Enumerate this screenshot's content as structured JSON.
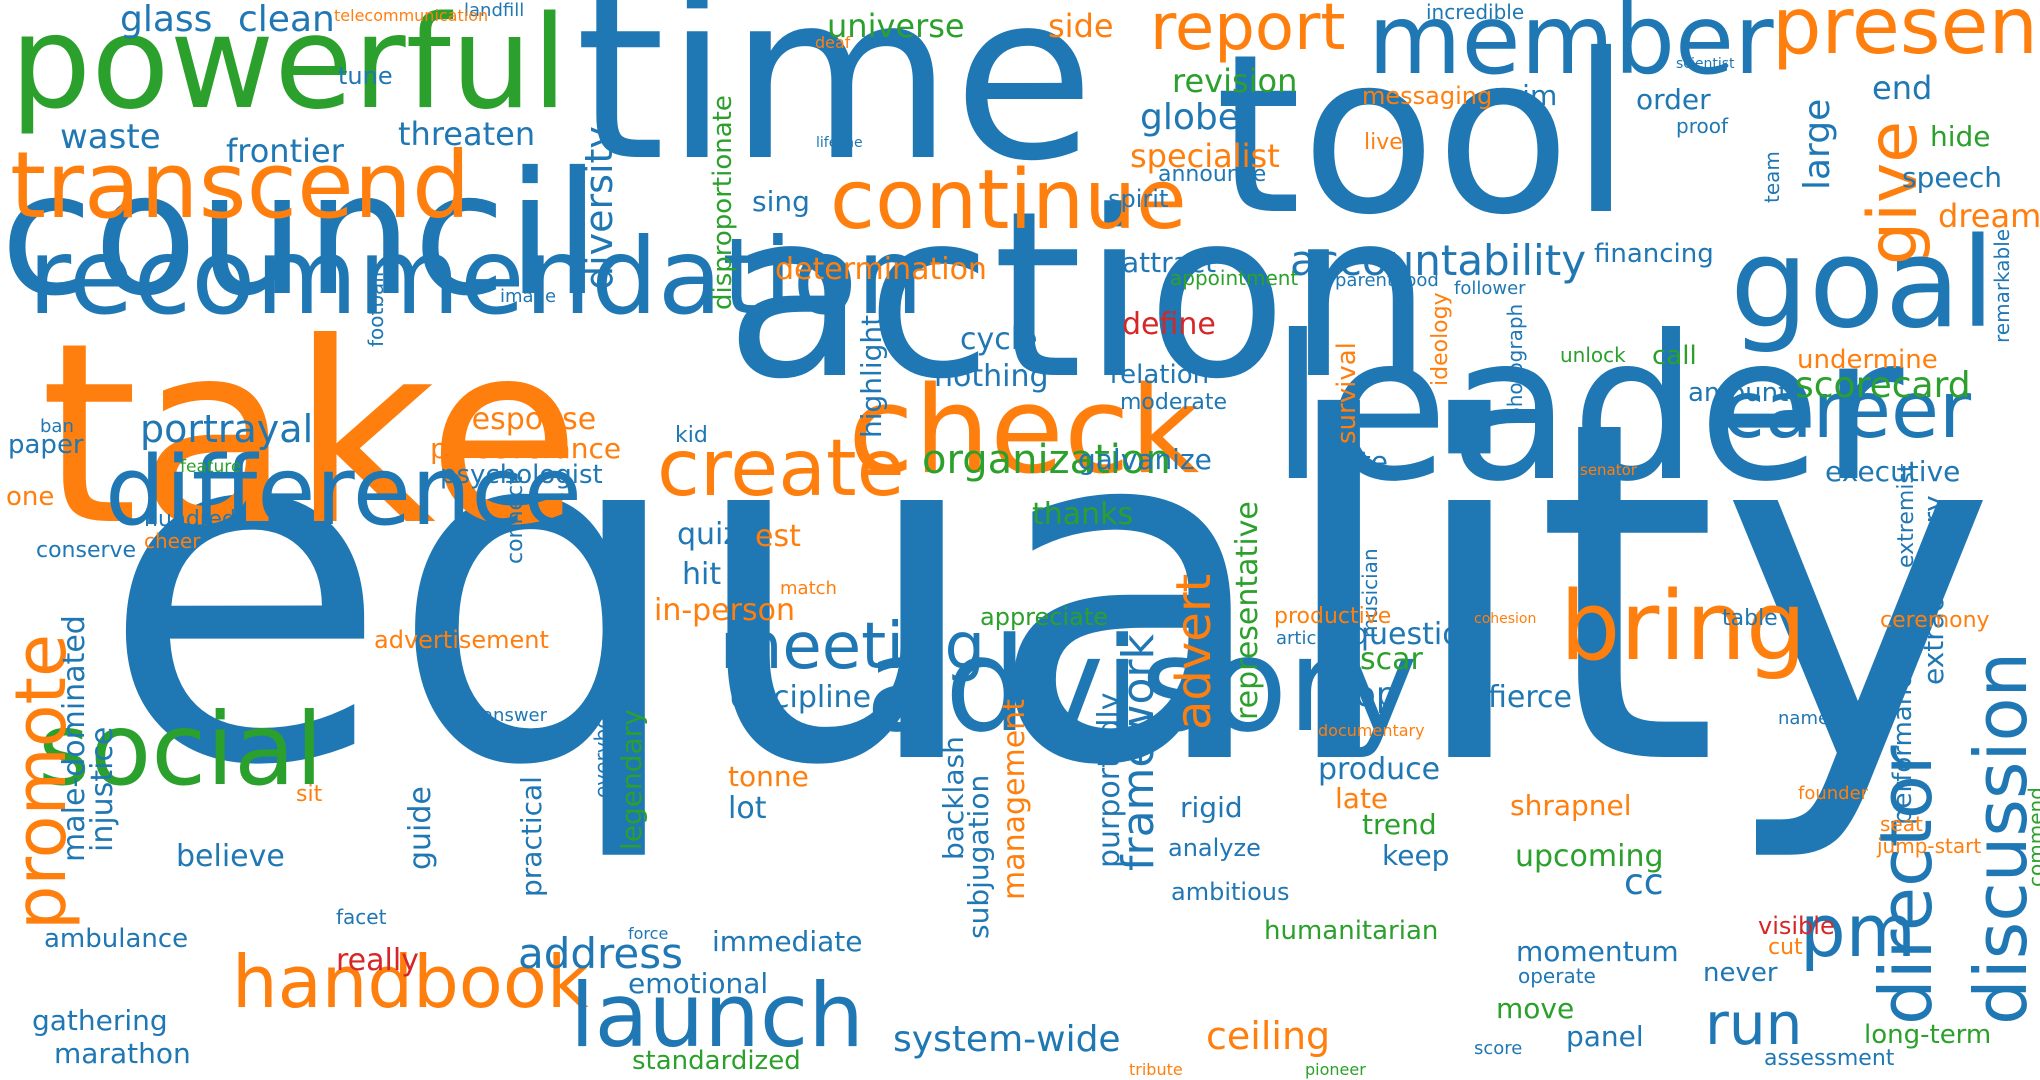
{
  "colors": {
    "blue": "#1f77b4",
    "orange": "#ff7f0e",
    "green": "#2ca02c",
    "red": "#d62728"
  },
  "words": [
    {
      "text": "equality",
      "color": "blue"
    },
    {
      "text": "action",
      "color": "blue"
    },
    {
      "text": "take",
      "color": "orange"
    },
    {
      "text": "time",
      "color": "blue"
    },
    {
      "text": "tool",
      "color": "blue"
    },
    {
      "text": "council",
      "color": "blue"
    },
    {
      "text": "leader",
      "color": "blue"
    },
    {
      "text": "powerful",
      "color": "green"
    },
    {
      "text": "advisory",
      "color": "blue"
    },
    {
      "text": "difference",
      "color": "blue"
    },
    {
      "text": "recommendation",
      "color": "blue"
    },
    {
      "text": "check",
      "color": "orange"
    },
    {
      "text": "member",
      "color": "blue"
    },
    {
      "text": "transcend",
      "color": "orange"
    },
    {
      "text": "continue",
      "color": "orange"
    },
    {
      "text": "goal",
      "color": "blue"
    },
    {
      "text": "social",
      "color": "green"
    },
    {
      "text": "handbook",
      "color": "orange"
    },
    {
      "text": "launch",
      "color": "blue"
    },
    {
      "text": "bring",
      "color": "orange"
    },
    {
      "text": "create",
      "color": "orange"
    },
    {
      "text": "meeting",
      "color": "blue"
    },
    {
      "text": "career",
      "color": "blue"
    },
    {
      "text": "present",
      "color": "orange"
    },
    {
      "text": "report",
      "color": "orange"
    },
    {
      "text": "promote",
      "color": "orange"
    },
    {
      "text": "director",
      "color": "blue"
    },
    {
      "text": "discussion",
      "color": "blue"
    },
    {
      "text": "accountability",
      "color": "blue"
    },
    {
      "text": "organization",
      "color": "green"
    },
    {
      "text": "portrayal",
      "color": "blue"
    },
    {
      "text": "scorecard",
      "color": "green"
    },
    {
      "text": "system-wide",
      "color": "blue"
    },
    {
      "text": "run",
      "color": "blue"
    },
    {
      "text": "pm",
      "color": "blue"
    },
    {
      "text": "give",
      "color": "orange"
    },
    {
      "text": "diversity",
      "color": "blue"
    },
    {
      "text": "framework",
      "color": "blue"
    },
    {
      "text": "address",
      "color": "blue"
    },
    {
      "text": "ceiling",
      "color": "orange"
    },
    {
      "text": "advert",
      "color": "orange"
    },
    {
      "text": "large",
      "color": "blue"
    },
    {
      "text": "glass",
      "color": "blue"
    },
    {
      "text": "clean",
      "color": "blue"
    },
    {
      "text": "waste",
      "color": "blue"
    },
    {
      "text": "frontier",
      "color": "blue"
    },
    {
      "text": "threaten",
      "color": "blue"
    },
    {
      "text": "universe",
      "color": "green"
    },
    {
      "text": "side",
      "color": "orange"
    },
    {
      "text": "globe",
      "color": "blue"
    },
    {
      "text": "specialist",
      "color": "orange"
    },
    {
      "text": "revision",
      "color": "green"
    },
    {
      "text": "messaging",
      "color": "orange"
    },
    {
      "text": "aim",
      "color": "blue"
    },
    {
      "text": "order",
      "color": "blue"
    },
    {
      "text": "end",
      "color": "blue"
    },
    {
      "text": "hide",
      "color": "green"
    },
    {
      "text": "speech",
      "color": "blue"
    },
    {
      "text": "dream",
      "color": "orange"
    },
    {
      "text": "determination",
      "color": "orange"
    },
    {
      "text": "attract",
      "color": "blue"
    },
    {
      "text": "financing",
      "color": "blue"
    },
    {
      "text": "define",
      "color": "red"
    },
    {
      "text": "cycle",
      "color": "blue"
    },
    {
      "text": "nothing",
      "color": "blue"
    },
    {
      "text": "relation",
      "color": "blue"
    },
    {
      "text": "moderate",
      "color": "blue"
    },
    {
      "text": "undermine",
      "color": "orange"
    },
    {
      "text": "amount",
      "color": "blue"
    },
    {
      "text": "call",
      "color": "green"
    },
    {
      "text": "response",
      "color": "orange"
    },
    {
      "text": "perseverance",
      "color": "orange"
    },
    {
      "text": "galvanize",
      "color": "blue"
    },
    {
      "text": "state",
      "color": "blue"
    },
    {
      "text": "executive",
      "color": "blue"
    },
    {
      "text": "thanks",
      "color": "green"
    },
    {
      "text": "est",
      "color": "orange"
    },
    {
      "text": "quiz",
      "color": "blue"
    },
    {
      "text": "hit",
      "color": "blue"
    },
    {
      "text": "in-person",
      "color": "orange"
    },
    {
      "text": "question",
      "color": "blue"
    },
    {
      "text": "scar",
      "color": "green"
    },
    {
      "text": "stop",
      "color": "blue"
    },
    {
      "text": "fierce",
      "color": "blue"
    },
    {
      "text": "discipline",
      "color": "blue"
    },
    {
      "text": "produce",
      "color": "blue"
    },
    {
      "text": "late",
      "color": "orange"
    },
    {
      "text": "trend",
      "color": "green"
    },
    {
      "text": "keep",
      "color": "blue"
    },
    {
      "text": "rigid",
      "color": "blue"
    },
    {
      "text": "analyze",
      "color": "blue"
    },
    {
      "text": "ambitious",
      "color": "blue"
    },
    {
      "text": "shrapnel",
      "color": "orange"
    },
    {
      "text": "upcoming",
      "color": "green"
    },
    {
      "text": "cc",
      "color": "blue"
    },
    {
      "text": "tonne",
      "color": "orange"
    },
    {
      "text": "lot",
      "color": "blue"
    },
    {
      "text": "believe",
      "color": "blue"
    },
    {
      "text": "ambulance",
      "color": "blue"
    },
    {
      "text": "really",
      "color": "red"
    },
    {
      "text": "immediate",
      "color": "blue"
    },
    {
      "text": "emotional",
      "color": "blue"
    },
    {
      "text": "humanitarian",
      "color": "green"
    },
    {
      "text": "momentum",
      "color": "blue"
    },
    {
      "text": "never",
      "color": "blue"
    },
    {
      "text": "visible",
      "color": "red"
    },
    {
      "text": "move",
      "color": "green"
    },
    {
      "text": "panel",
      "color": "blue"
    },
    {
      "text": "gathering",
      "color": "blue"
    },
    {
      "text": "marathon",
      "color": "blue"
    },
    {
      "text": "standardized",
      "color": "green"
    },
    {
      "text": "assessment",
      "color": "blue"
    },
    {
      "text": "long-term",
      "color": "green"
    },
    {
      "text": "appreciate",
      "color": "green"
    },
    {
      "text": "advertisement",
      "color": "orange"
    },
    {
      "text": "paper",
      "color": "blue"
    },
    {
      "text": "one",
      "color": "orange"
    },
    {
      "text": "kid",
      "color": "blue"
    },
    {
      "text": "sing",
      "color": "blue"
    },
    {
      "text": "spirit",
      "color": "blue"
    },
    {
      "text": "announce",
      "color": "blue"
    },
    {
      "text": "tune",
      "color": "blue"
    },
    {
      "text": "landfill",
      "color": "blue"
    },
    {
      "text": "incredible",
      "color": "blue"
    },
    {
      "text": "live",
      "color": "orange"
    },
    {
      "text": "sit",
      "color": "orange"
    },
    {
      "text": "guide",
      "color": "blue"
    },
    {
      "text": "practical",
      "color": "blue"
    },
    {
      "text": "legendary",
      "color": "green"
    },
    {
      "text": "backlash",
      "color": "blue"
    },
    {
      "text": "subjugation",
      "color": "blue"
    },
    {
      "text": "management",
      "color": "orange"
    },
    {
      "text": "purportedly",
      "color": "blue"
    },
    {
      "text": "representative",
      "color": "green"
    },
    {
      "text": "highlight",
      "color": "blue"
    },
    {
      "text": "disproportionate",
      "color": "green"
    },
    {
      "text": "male-dominated",
      "color": "blue"
    },
    {
      "text": "injustice",
      "color": "blue"
    },
    {
      "text": "survival",
      "color": "orange"
    },
    {
      "text": "performance",
      "color": "blue"
    },
    {
      "text": "extraordinary",
      "color": "blue"
    },
    {
      "text": "extremist",
      "color": "blue"
    },
    {
      "text": "team",
      "color": "blue"
    },
    {
      "text": "remarkable",
      "color": "blue"
    },
    {
      "text": "musician",
      "color": "blue"
    },
    {
      "text": "connect",
      "color": "blue"
    },
    {
      "text": "everybody",
      "color": "blue"
    },
    {
      "text": "football",
      "color": "blue"
    },
    {
      "text": "ideology",
      "color": "orange"
    },
    {
      "text": "photograph",
      "color": "blue"
    },
    {
      "text": "commend",
      "color": "green"
    },
    {
      "text": "appointment",
      "color": "green"
    },
    {
      "text": "parenthood",
      "color": "blue"
    },
    {
      "text": "follower",
      "color": "blue"
    },
    {
      "text": "image",
      "color": "blue"
    },
    {
      "text": "unlock",
      "color": "green"
    },
    {
      "text": "ban",
      "color": "blue"
    },
    {
      "text": "feature",
      "color": "green"
    },
    {
      "text": "psychologist",
      "color": "blue"
    },
    {
      "text": "senator",
      "color": "orange"
    },
    {
      "text": "hundred",
      "color": "blue"
    },
    {
      "text": "cheer",
      "color": "orange"
    },
    {
      "text": "conserve",
      "color": "blue"
    },
    {
      "text": "match",
      "color": "orange"
    },
    {
      "text": "productive",
      "color": "orange"
    },
    {
      "text": "cohesion",
      "color": "orange"
    },
    {
      "text": "article",
      "color": "blue"
    },
    {
      "text": "table",
      "color": "blue"
    },
    {
      "text": "ceremony",
      "color": "orange"
    },
    {
      "text": "answer",
      "color": "blue"
    },
    {
      "text": "documentary",
      "color": "orange"
    },
    {
      "text": "name",
      "color": "blue"
    },
    {
      "text": "founder",
      "color": "orange"
    },
    {
      "text": "seat",
      "color": "orange"
    },
    {
      "text": "jump-start",
      "color": "orange"
    },
    {
      "text": "facet",
      "color": "blue"
    },
    {
      "text": "force",
      "color": "blue"
    },
    {
      "text": "cut",
      "color": "orange"
    },
    {
      "text": "operate",
      "color": "blue"
    },
    {
      "text": "score",
      "color": "blue"
    },
    {
      "text": "tribute",
      "color": "orange"
    },
    {
      "text": "pioneer",
      "color": "green"
    },
    {
      "text": "telecommunication",
      "color": "orange"
    },
    {
      "text": "deaf",
      "color": "orange"
    },
    {
      "text": "lifeline",
      "color": "blue"
    },
    {
      "text": "scientist",
      "color": "blue"
    },
    {
      "text": "proof",
      "color": "blue"
    },
    {
      "text": "ring",
      "color": "blue"
    },
    {
      "text": "bold",
      "color": "orange"
    }
  ]
}
